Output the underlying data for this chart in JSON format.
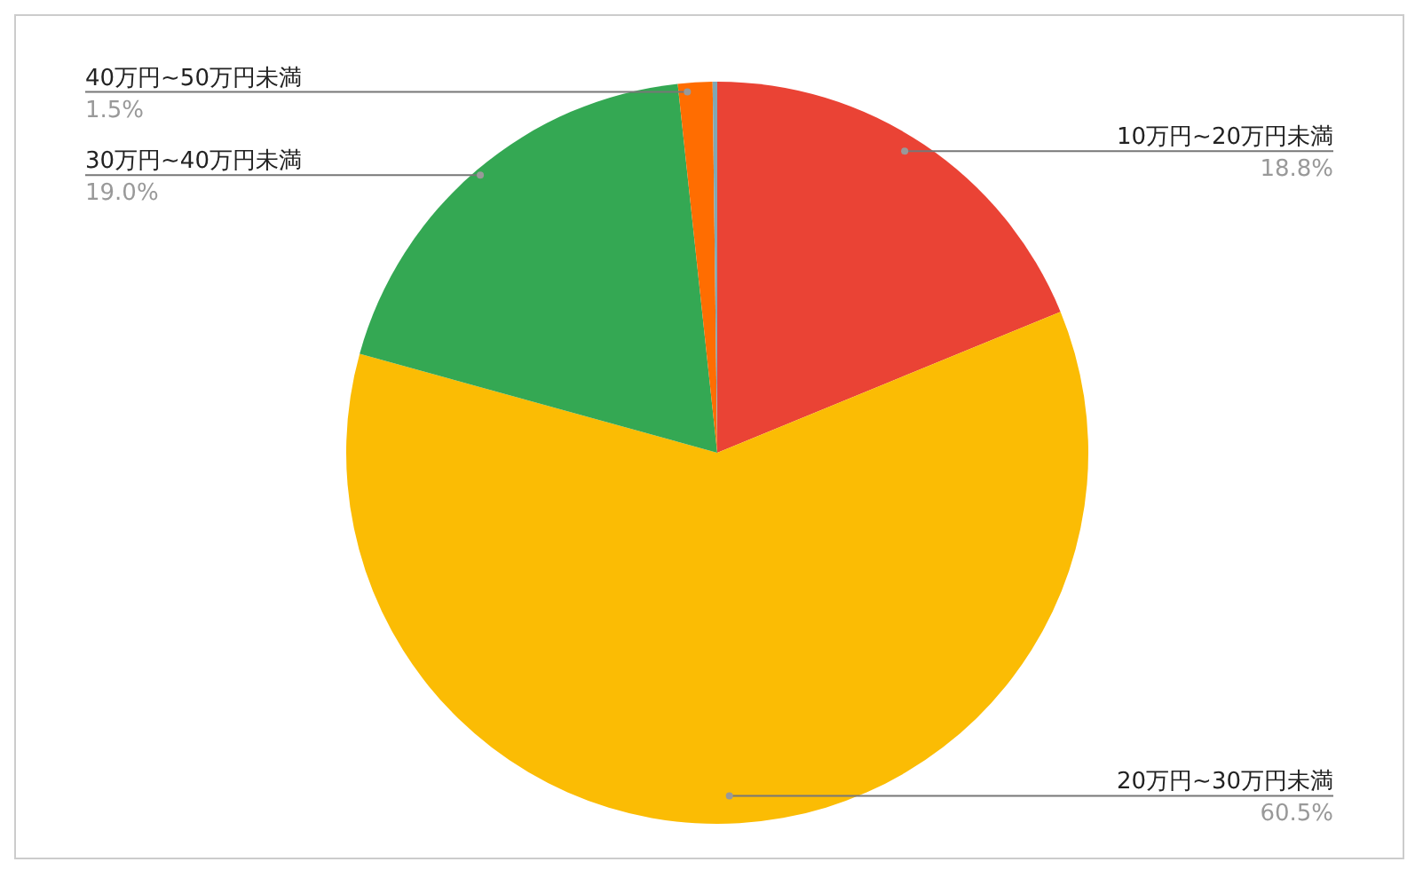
{
  "chart_data": {
    "type": "pie",
    "categories": [
      "10万円~20万円未満",
      "20万円~30万円未満",
      "30万円~40万円未満",
      "40万円~50万円未満",
      null
    ],
    "values": [
      18.8,
      60.5,
      19.0,
      1.5,
      0.2
    ],
    "colors": [
      "#ea4335",
      "#fbbc04",
      "#34a853",
      "#ff6d01",
      "#7fa7b5"
    ],
    "value_labels": [
      "18.8%",
      "60.5%",
      "19.0%",
      "1.5%",
      null
    ]
  }
}
